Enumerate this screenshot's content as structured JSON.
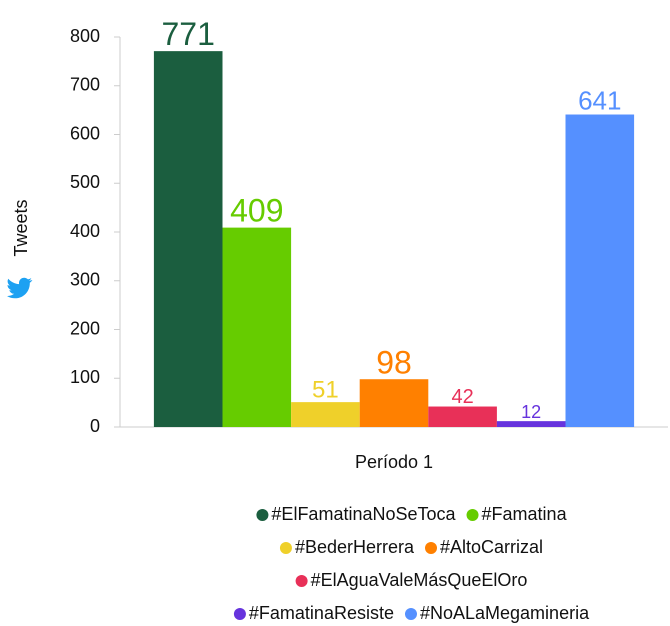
{
  "chart_data": {
    "type": "bar",
    "y_label": "Tweets",
    "categories": [
      "Período 1"
    ],
    "series": [
      {
        "name": "#ElFamatinaNoSeToca",
        "color": "#1b5e3f",
        "values": [
          771
        ]
      },
      {
        "name": "#Famatina",
        "color": "#66cc00",
        "values": [
          409
        ]
      },
      {
        "name": "#BederHerrera",
        "color": "#efd02a",
        "values": [
          51
        ]
      },
      {
        "name": "#AltoCarrizal",
        "color": "#ff8000",
        "values": [
          98
        ]
      },
      {
        "name": "#ElAguaValeMásQueElOro",
        "color": "#e83058",
        "values": [
          42
        ]
      },
      {
        "name": "#FamatinaResiste",
        "color": "#6633dd",
        "values": [
          12
        ]
      },
      {
        "name": "#NoALaMegamineria",
        "color": "#5590ff",
        "values": [
          641
        ]
      }
    ],
    "ylim": [
      0,
      800
    ],
    "yticks": [
      0,
      100,
      200,
      300,
      400,
      500,
      600,
      700,
      800
    ]
  }
}
